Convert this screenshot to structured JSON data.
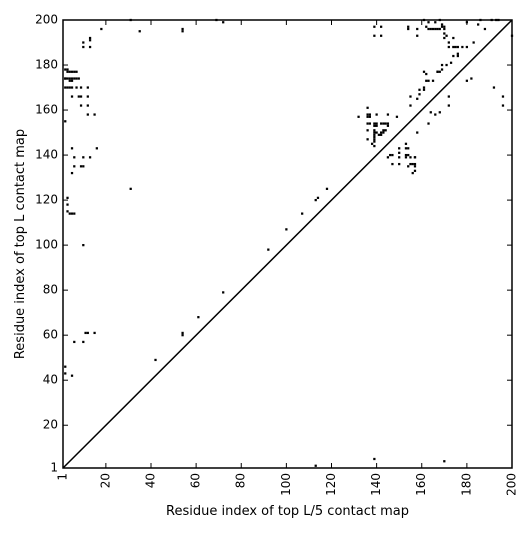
{
  "chart_data": {
    "type": "scatter",
    "title": "",
    "xlabel": "Residue index of top L/5 contact map",
    "ylabel": "Residue index of top L contact map",
    "xlim": [
      1,
      200
    ],
    "ylim": [
      1,
      200
    ],
    "x_ticks": [
      1,
      20,
      40,
      60,
      80,
      100,
      120,
      140,
      160,
      180,
      200
    ],
    "y_ticks": [
      1,
      20,
      40,
      60,
      80,
      100,
      120,
      140,
      160,
      180,
      200
    ],
    "x_tick_labels": [
      "1",
      "20",
      "40",
      "60",
      "80",
      "100",
      "120",
      "140",
      "160",
      "180",
      "200"
    ],
    "y_tick_labels": [
      "1",
      "20",
      "40",
      "60",
      "80",
      "100",
      "120",
      "140",
      "160",
      "180",
      "200"
    ],
    "diagonal_line": [
      [
        1,
        1
      ],
      [
        200,
        200
      ]
    ],
    "grid": false,
    "colors": {
      "points": "#000000",
      "line": "#000000",
      "background": "#ffffff"
    },
    "series": [
      {
        "points": [
          [
            113,
            2
          ],
          [
            139,
            5
          ],
          [
            170,
            4
          ],
          [
            31,
            125
          ],
          [
            35,
            195
          ],
          [
            42,
            49
          ],
          [
            54,
            60
          ],
          [
            54,
            61
          ],
          [
            54,
            195
          ],
          [
            54,
            196
          ],
          [
            61,
            68
          ],
          [
            69,
            200
          ],
          [
            72,
            199
          ],
          [
            72,
            79
          ],
          [
            92,
            98
          ],
          [
            100,
            107
          ],
          [
            107,
            114
          ],
          [
            113,
            120
          ],
          [
            114,
            121
          ],
          [
            118,
            125
          ],
          [
            31,
            200
          ],
          [
            18,
            196
          ],
          [
            2,
            46
          ],
          [
            2,
            43
          ],
          [
            5,
            42
          ],
          [
            6,
            57
          ],
          [
            10,
            57
          ],
          [
            10,
            100
          ],
          [
            10,
            135
          ],
          [
            10,
            139
          ],
          [
            11,
            61
          ],
          [
            12,
            61
          ],
          [
            15,
            61
          ],
          [
            2,
            155
          ],
          [
            2,
            178
          ],
          [
            3,
            177
          ],
          [
            2,
            174
          ],
          [
            3,
            115
          ],
          [
            3,
            118
          ],
          [
            3,
            121
          ],
          [
            4,
            114
          ],
          [
            5,
            114
          ],
          [
            6,
            114
          ],
          [
            5,
            132
          ],
          [
            6,
            135
          ],
          [
            6,
            139
          ],
          [
            5,
            143
          ],
          [
            9,
            135
          ],
          [
            13,
            139
          ],
          [
            16,
            143
          ],
          [
            2,
            170
          ],
          [
            3,
            170
          ],
          [
            4,
            170
          ],
          [
            5,
            170
          ],
          [
            7,
            170
          ],
          [
            9,
            170
          ],
          [
            5,
            166
          ],
          [
            8,
            166
          ],
          [
            9,
            166
          ],
          [
            12,
            166
          ],
          [
            9,
            162
          ],
          [
            12,
            162
          ],
          [
            12,
            158
          ],
          [
            15,
            158
          ],
          [
            12,
            170
          ],
          [
            2,
            174
          ],
          [
            3,
            174
          ],
          [
            4,
            174
          ],
          [
            5,
            174
          ],
          [
            6,
            174
          ],
          [
            7,
            174
          ],
          [
            8,
            174
          ],
          [
            4,
            177
          ],
          [
            5,
            177
          ],
          [
            6,
            177
          ],
          [
            7,
            177
          ],
          [
            3,
            178
          ],
          [
            4,
            173
          ],
          [
            5,
            173
          ],
          [
            10,
            188
          ],
          [
            10,
            190
          ],
          [
            13,
            188
          ],
          [
            13,
            191
          ],
          [
            13,
            192
          ],
          [
            136,
            158
          ],
          [
            137,
            158
          ],
          [
            136,
            157
          ],
          [
            137,
            157
          ],
          [
            132,
            157
          ],
          [
            136,
            161
          ],
          [
            136,
            154
          ],
          [
            137,
            154
          ],
          [
            139,
            154
          ],
          [
            140,
            154
          ],
          [
            139,
            153
          ],
          [
            140,
            153
          ],
          [
            136,
            151
          ],
          [
            139,
            151
          ],
          [
            139,
            150
          ],
          [
            140,
            150
          ],
          [
            139,
            149
          ],
          [
            139,
            148
          ],
          [
            142,
            150
          ],
          [
            142,
            149
          ],
          [
            141,
            149
          ],
          [
            143,
            150
          ],
          [
            143,
            151
          ],
          [
            144,
            151
          ],
          [
            142,
            154
          ],
          [
            143,
            154
          ],
          [
            144,
            154
          ],
          [
            145,
            154
          ],
          [
            145,
            153
          ],
          [
            145,
            158
          ],
          [
            140,
            158
          ],
          [
            139,
            147
          ],
          [
            139,
            146
          ],
          [
            138,
            145
          ],
          [
            136,
            147
          ],
          [
            139,
            144
          ],
          [
            149,
            157
          ],
          [
            146,
            140
          ],
          [
            147,
            140
          ],
          [
            145,
            139
          ],
          [
            147,
            136
          ],
          [
            150,
            136
          ],
          [
            150,
            139
          ],
          [
            150,
            141
          ],
          [
            150,
            143
          ],
          [
            153,
            145
          ],
          [
            153,
            143
          ],
          [
            154,
            143
          ],
          [
            153,
            140
          ],
          [
            154,
            140
          ],
          [
            155,
            139
          ],
          [
            155,
            136
          ],
          [
            156,
            136
          ],
          [
            157,
            136
          ],
          [
            157,
            139
          ],
          [
            157,
            135
          ],
          [
            157,
            133
          ],
          [
            156,
            132
          ],
          [
            154,
            135
          ],
          [
            157,
            139
          ],
          [
            153,
            139
          ],
          [
            155,
            166
          ],
          [
            155,
            162
          ],
          [
            158,
            165
          ],
          [
            158,
            150
          ],
          [
            159,
            169
          ],
          [
            159,
            167
          ],
          [
            161,
            170
          ],
          [
            161,
            169
          ],
          [
            161,
            177
          ],
          [
            162,
            176
          ],
          [
            162,
            173
          ],
          [
            163,
            173
          ],
          [
            165,
            173
          ],
          [
            164,
            159
          ],
          [
            166,
            158
          ],
          [
            168,
            159
          ],
          [
            167,
            177
          ],
          [
            168,
            177
          ],
          [
            169,
            178
          ],
          [
            169,
            180
          ],
          [
            171,
            180
          ],
          [
            173,
            181
          ],
          [
            174,
            184
          ],
          [
            176,
            184
          ],
          [
            176,
            185
          ],
          [
            172,
            166
          ],
          [
            172,
            162
          ],
          [
            180,
            173
          ],
          [
            182,
            174
          ],
          [
            183,
            190
          ],
          [
            180,
            188
          ],
          [
            178,
            188
          ],
          [
            174,
            188
          ],
          [
            172,
            190
          ],
          [
            172,
            188
          ],
          [
            170,
            192
          ],
          [
            171,
            193
          ],
          [
            170,
            194
          ],
          [
            170,
            196
          ],
          [
            170,
            197
          ],
          [
            169,
            197
          ],
          [
            168,
            196
          ],
          [
            167,
            196
          ],
          [
            166,
            196
          ],
          [
            165,
            196
          ],
          [
            164,
            196
          ],
          [
            163,
            196
          ],
          [
            162,
            197
          ],
          [
            158,
            196
          ],
          [
            154,
            196
          ],
          [
            154,
            197
          ],
          [
            158,
            193
          ],
          [
            161,
            200
          ],
          [
            163,
            199
          ],
          [
            166,
            199
          ],
          [
            168,
            200
          ],
          [
            169,
            198
          ],
          [
            180,
            199
          ],
          [
            185,
            198
          ],
          [
            188,
            196
          ],
          [
            186,
            200
          ],
          [
            191,
            200
          ],
          [
            192,
            170
          ],
          [
            196,
            166
          ],
          [
            196,
            162
          ],
          [
            200,
            193
          ],
          [
            193,
            200
          ],
          [
            194,
            200
          ],
          [
            142,
            197
          ],
          [
            142,
            193
          ],
          [
            139,
            193
          ],
          [
            139,
            197
          ],
          [
            163,
            154
          ],
          [
            167,
            177
          ],
          [
            175,
            188
          ],
          [
            174,
            192
          ],
          [
            176,
            188
          ]
        ]
      }
    ]
  }
}
